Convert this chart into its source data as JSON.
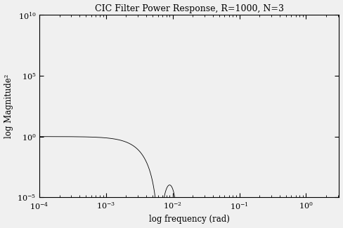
{
  "title": "CIC Filter Power Response, R=1000, N=3",
  "xlabel": "log frequency (rad)",
  "ylabel": "log Magnitude²",
  "R": 1000,
  "N": 3,
  "xlim": [
    0.0001,
    3.1416
  ],
  "ylim": [
    1e-05,
    10000000000.0
  ],
  "background_color": "#f0f0f0",
  "line_color": "#000000",
  "title_fontsize": 9,
  "label_fontsize": 8.5,
  "tick_fontsize": 8,
  "num_points": 200000
}
